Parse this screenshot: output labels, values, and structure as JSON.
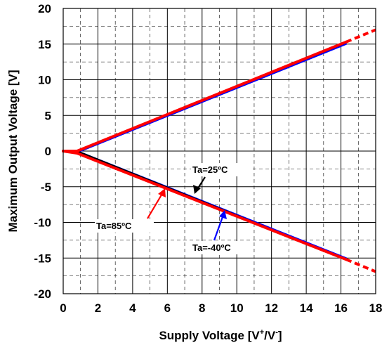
{
  "chart_data": {
    "type": "line",
    "xlabel": "Supply Voltage [V",
    "xlabel_sup1": "+",
    "xlabel_mid": "/V",
    "xlabel_sup2": "-",
    "xlabel_end": "]",
    "ylabel": "Maximum Output Voltage [V]",
    "xlim": [
      0,
      18
    ],
    "ylim": [
      -20,
      20
    ],
    "x_ticks": [
      "0",
      "2",
      "4",
      "6",
      "8",
      "10",
      "12",
      "14",
      "16",
      "18"
    ],
    "y_ticks": [
      "20",
      "15",
      "10",
      "5",
      "0",
      "-5",
      "-10",
      "-15",
      "-20"
    ],
    "grid": true,
    "series": [
      {
        "name": "Ta=25ºC",
        "color": "#000000",
        "upper": [
          [
            0,
            0
          ],
          [
            0.8,
            0
          ],
          [
            16.3,
            15.2
          ]
        ],
        "lower": [
          [
            0,
            0
          ],
          [
            0.8,
            0
          ],
          [
            16.3,
            -15.2
          ]
        ]
      },
      {
        "name": "Ta=85ºC",
        "color": "#ff0000",
        "upper": [
          [
            0,
            0
          ],
          [
            0.8,
            0
          ],
          [
            16.3,
            15.3
          ],
          [
            18,
            17.0
          ]
        ],
        "lower": [
          [
            0,
            0
          ],
          [
            0.8,
            -0.3
          ],
          [
            16.3,
            -15.2
          ],
          [
            18,
            -16.9
          ]
        ]
      },
      {
        "name": "Ta=-40ºC",
        "color": "#0000ff",
        "upper": [
          [
            0,
            0
          ],
          [
            0.8,
            -0.2
          ],
          [
            16.3,
            15.0
          ]
        ],
        "lower": [
          [
            0,
            0
          ],
          [
            0.8,
            0
          ],
          [
            16.3,
            -15.0
          ]
        ]
      }
    ],
    "annotations": [
      {
        "text": "Ta=25ºC",
        "color": "#000000"
      },
      {
        "text": "Ta=85ºC",
        "color": "#ff0000"
      },
      {
        "text": "Ta=-40ºC",
        "color": "#0000ff"
      }
    ]
  }
}
